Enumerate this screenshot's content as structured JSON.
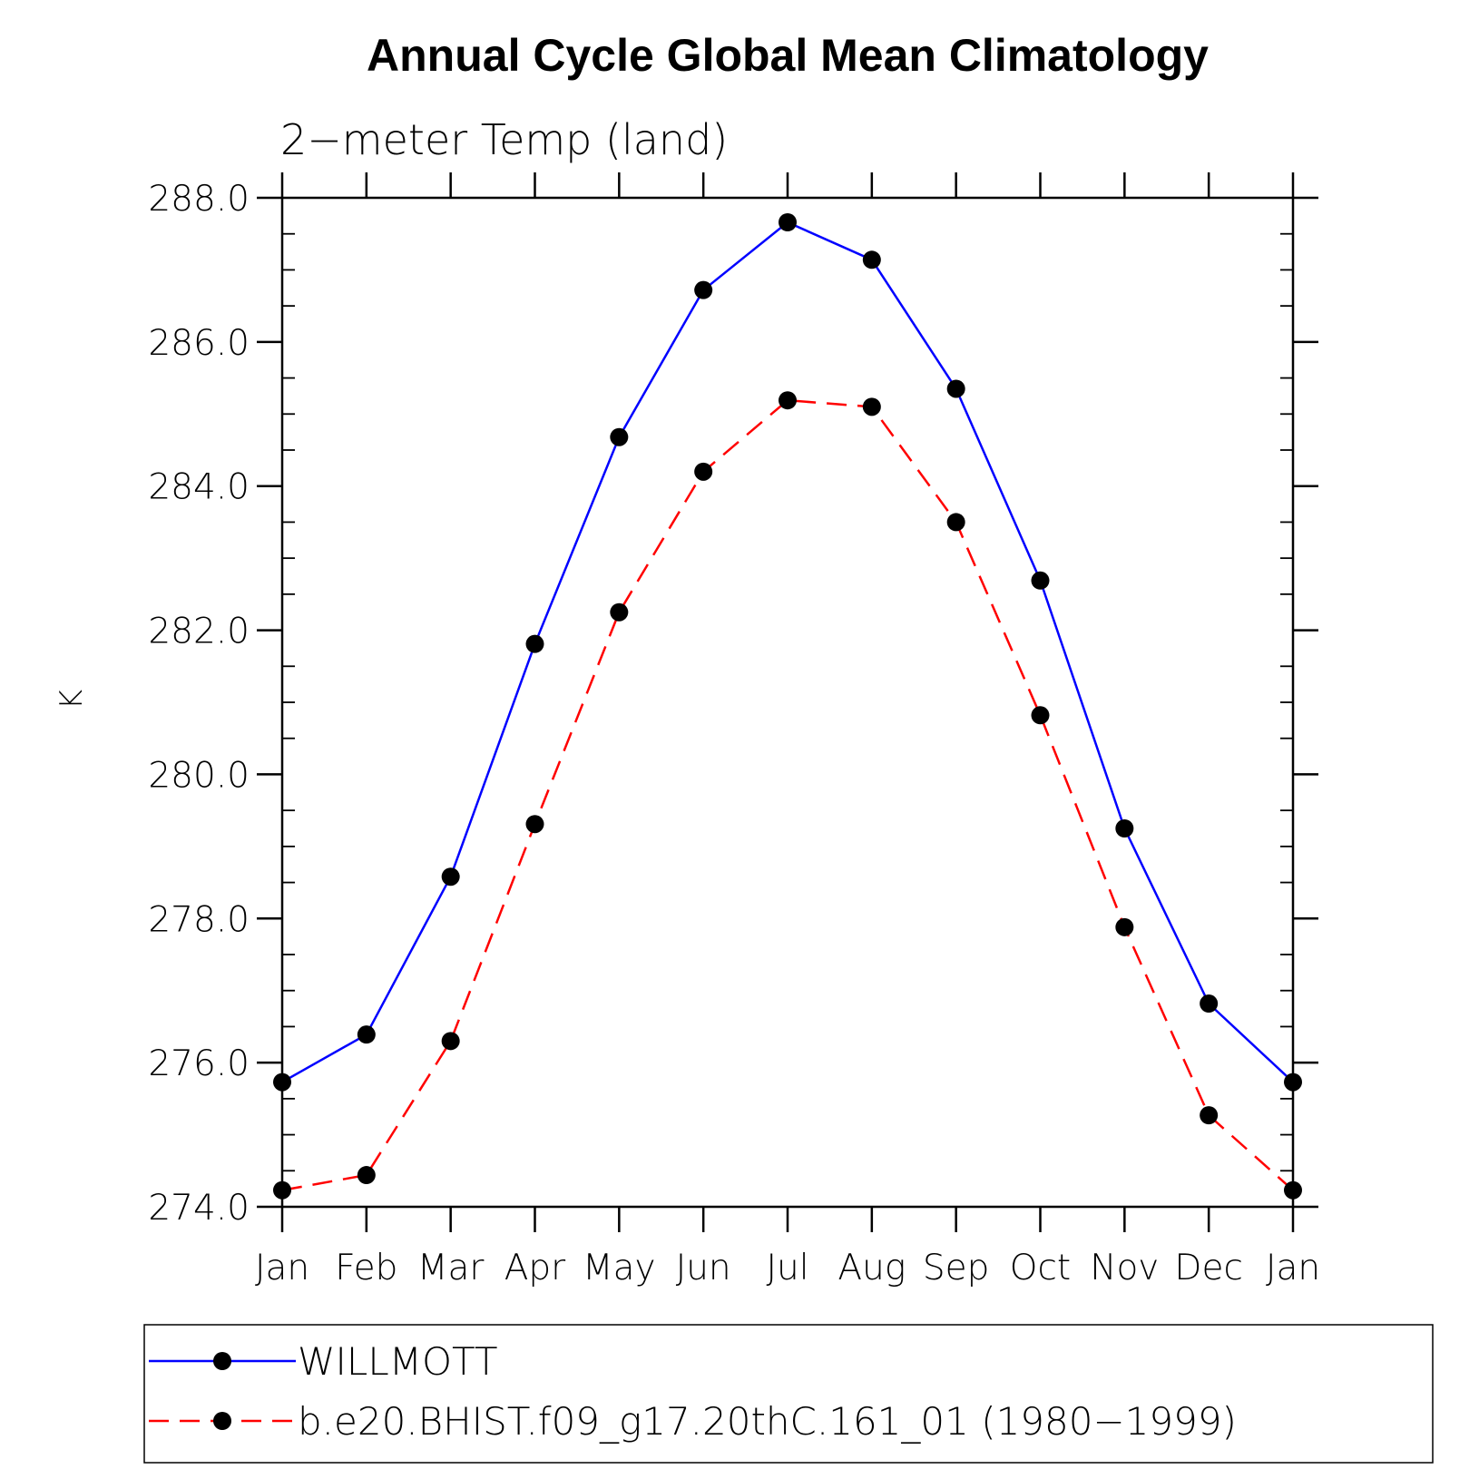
{
  "chart_data": {
    "type": "line",
    "title": "Annual Cycle Global Mean Climatology",
    "subtitle": "2−meter Temp (land)",
    "ylabel": "K",
    "xlabel": "",
    "categories": [
      "Jan",
      "Feb",
      "Mar",
      "Apr",
      "May",
      "Jun",
      "Jul",
      "Aug",
      "Sep",
      "Oct",
      "Nov",
      "Dec",
      "Jan"
    ],
    "ylim": [
      274.0,
      288.0
    ],
    "yticks": [
      274.0,
      276.0,
      278.0,
      280.0,
      282.0,
      284.0,
      286.0,
      288.0
    ],
    "ytick_labels": [
      "274.0",
      "276.0",
      "278.0",
      "280.0",
      "282.0",
      "284.0",
      "286.0",
      "288.0"
    ],
    "y_minor_step": 0.5,
    "grid": false,
    "legend_position": "bottom",
    "series": [
      {
        "name": "WILLMOTT",
        "color": "#0000ff",
        "line_style": "solid",
        "marker": "filled-circle",
        "values": [
          275.73,
          276.39,
          278.58,
          281.81,
          284.68,
          286.72,
          287.66,
          287.14,
          285.35,
          282.69,
          279.25,
          276.82,
          275.73
        ]
      },
      {
        "name": "b.e20.BHIST.f09_g17.20thC.161_01 (1980−1999)",
        "color": "#ff0000",
        "line_style": "dashed",
        "marker": "filled-circle",
        "values": [
          274.23,
          274.44,
          276.3,
          279.31,
          282.25,
          284.2,
          285.19,
          285.1,
          283.5,
          280.82,
          277.88,
          275.27,
          274.23
        ]
      }
    ]
  }
}
